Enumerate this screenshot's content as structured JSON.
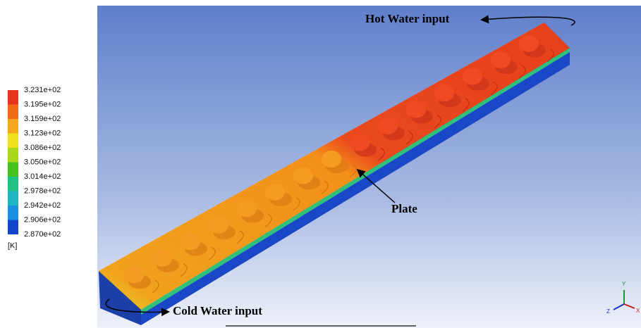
{
  "legend": {
    "labels": [
      "3.231e+02",
      "3.195e+02",
      "3.159e+02",
      "3.123e+02",
      "3.086e+02",
      "3.050e+02",
      "3.014e+02",
      "2.978e+02",
      "2.942e+02",
      "2.906e+02",
      "2.870e+02"
    ],
    "unit": "[K]",
    "colors": [
      "#e8321c",
      "#f26a18",
      "#f5a81a",
      "#efe21a",
      "#a9d81b",
      "#45c21e",
      "#1ec384",
      "#1fb6c4",
      "#1b8fe0",
      "#1445cf"
    ]
  },
  "annotations": {
    "hot": "Hot Water input",
    "plate": "Plate",
    "cold": "Cold Water input"
  },
  "triad": {
    "y": "Y",
    "z": "Z",
    "x": "X"
  }
}
